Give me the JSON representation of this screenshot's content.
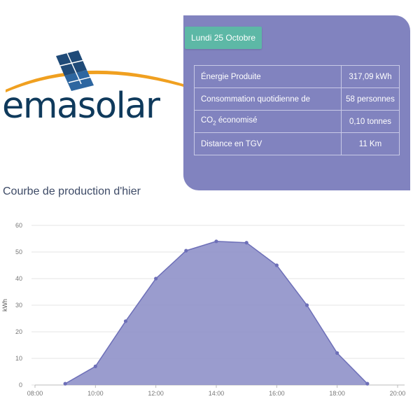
{
  "brand": {
    "logo_text": "emasolar"
  },
  "panel": {
    "date": "Lundi 25 Octobre",
    "rows": [
      {
        "label": "Énergie Produite",
        "value": "317,09 kWh"
      },
      {
        "label": "Consommation quotidienne de",
        "value": "58 personnes"
      },
      {
        "label_main": "CO",
        "label_sub": "2",
        "label_rest": " économisé",
        "value": "0,10 tonnes"
      },
      {
        "label": "Distance en TGV",
        "value": "11 Km"
      }
    ]
  },
  "colors": {
    "panel": "#8183bf",
    "badge": "#5db8a6",
    "area": "#8f91c9",
    "line": "#6d6fb8"
  },
  "chart_data": {
    "type": "area",
    "title": "Courbe de production d'hier",
    "ylabel": "kWh",
    "xlabel": "",
    "x_ticks": [
      "08:00",
      "10:00",
      "12:00",
      "14:00",
      "16:00",
      "18:00",
      "20:00"
    ],
    "y_ticks": [
      "0",
      "10",
      "20",
      "30",
      "40",
      "50",
      "60"
    ],
    "xlim": [
      8,
      20
    ],
    "ylim": [
      0,
      60
    ],
    "grid": true,
    "series": [
      {
        "x": [
          "09:00",
          "10:00",
          "11:00",
          "12:00",
          "13:00",
          "14:00",
          "15:00",
          "16:00",
          "17:00",
          "18:00",
          "19:00"
        ],
        "values": [
          0.5,
          7,
          24,
          40,
          50.5,
          54,
          53.5,
          45,
          30,
          12,
          0.5
        ]
      }
    ]
  }
}
